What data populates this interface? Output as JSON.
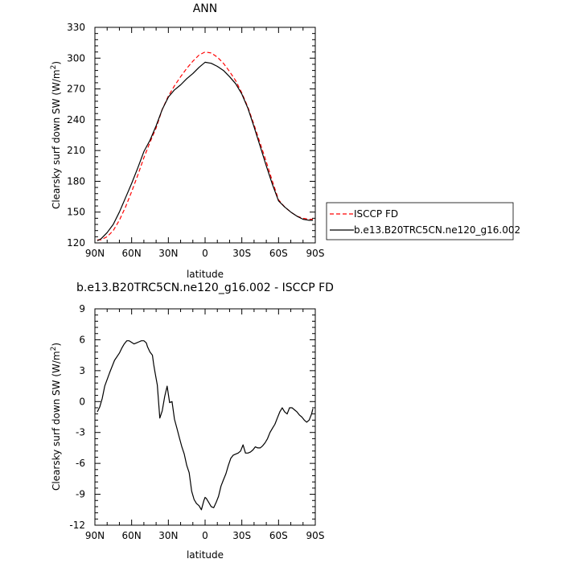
{
  "chart_data": [
    {
      "type": "line",
      "title": "ANN",
      "xlabel": "latitude",
      "ylabel_main": "Clearsky surf down SW (W/m",
      "ylabel_sup": "2",
      "ylabel_end": ")",
      "xlim": [
        -90,
        90
      ],
      "ylim": [
        120,
        330
      ],
      "xticks": [
        -90,
        -60,
        -30,
        0,
        30,
        60,
        90
      ],
      "xtick_labels": [
        "90N",
        "60N",
        "30N",
        "0",
        "30S",
        "60S",
        "90S"
      ],
      "yticks": [
        120,
        150,
        180,
        210,
        240,
        270,
        300,
        330
      ],
      "ytick_labels": [
        "120",
        "150",
        "180",
        "210",
        "240",
        "270",
        "300",
        "330"
      ],
      "legend_position": "right",
      "series": [
        {
          "name": "ISCCP FD",
          "color": "#ff0000",
          "dash": "dashed",
          "x": [
            -88,
            -85,
            -80,
            -75,
            -70,
            -65,
            -60,
            -55,
            -50,
            -45,
            -40,
            -35,
            -30,
            -25,
            -20,
            -15,
            -10,
            -5,
            0,
            5,
            10,
            15,
            20,
            25,
            30,
            35,
            40,
            45,
            50,
            55,
            60,
            65,
            70,
            75,
            80,
            85,
            88
          ],
          "y": [
            123,
            123,
            126,
            132,
            142,
            155,
            170,
            186,
            203,
            218,
            232,
            250,
            263,
            273,
            282,
            290,
            297,
            303,
            306,
            305,
            301,
            295,
            287,
            278,
            266,
            252,
            235,
            217,
            199,
            180,
            162,
            155,
            150,
            146,
            144,
            143,
            143
          ]
        },
        {
          "name": "b.e13.B20TRC5CN.ne120_g16.002",
          "color": "#000000",
          "dash": "solid",
          "x": [
            -88,
            -85,
            -80,
            -75,
            -70,
            -65,
            -60,
            -55,
            -50,
            -45,
            -40,
            -35,
            -30,
            -25,
            -20,
            -15,
            -10,
            -5,
            0,
            5,
            10,
            15,
            20,
            25,
            30,
            35,
            40,
            45,
            50,
            55,
            60,
            65,
            70,
            75,
            80,
            85,
            88
          ],
          "y": [
            122,
            124,
            130,
            138,
            150,
            164,
            178,
            193,
            209,
            220,
            234,
            250,
            262,
            269,
            274,
            280,
            285,
            291,
            296,
            295,
            292,
            288,
            282,
            275,
            265,
            251,
            233,
            214,
            195,
            177,
            161,
            155,
            150,
            146,
            143,
            142,
            142
          ]
        }
      ]
    },
    {
      "type": "line",
      "title": "b.e13.B20TRC5CN.ne120_g16.002 - ISCCP FD",
      "xlabel": "latitude",
      "ylabel_main": "Clearsky surf down SW (W/m",
      "ylabel_sup": "2",
      "ylabel_end": ")",
      "xlim": [
        -90,
        90
      ],
      "ylim": [
        -12,
        9
      ],
      "xticks": [
        -90,
        -60,
        -30,
        0,
        30,
        60,
        90
      ],
      "xtick_labels": [
        "90N",
        "60N",
        "30N",
        "0",
        "30S",
        "60S",
        "90S"
      ],
      "yticks": [
        -12,
        -9,
        -6,
        -3,
        0,
        3,
        6,
        9
      ],
      "ytick_labels": [
        "-12",
        "-9",
        "-6",
        "-3",
        "0",
        "3",
        "6",
        "9"
      ],
      "series": [
        {
          "color": "#000000",
          "dash": "solid",
          "x": [
            -88,
            -86,
            -84,
            -82,
            -78,
            -74,
            -70,
            -68,
            -66,
            -64,
            -62,
            -58,
            -56,
            -54,
            -52,
            -50,
            -48,
            -47,
            -45,
            -43,
            -42,
            -41,
            -39,
            -37,
            -35,
            -33,
            -31,
            -29,
            -27,
            -25,
            -23,
            -21,
            -19,
            -17,
            -15,
            -13,
            -11,
            -9,
            -7,
            -5,
            -3,
            -1,
            0,
            1,
            3,
            5,
            7,
            9,
            11,
            13,
            15,
            17,
            19,
            21,
            23,
            25,
            27,
            29,
            31,
            33,
            35,
            37,
            39,
            41,
            43,
            45,
            47,
            49,
            51,
            53,
            55,
            57,
            59,
            61,
            63,
            65,
            67,
            69,
            71,
            73,
            75,
            77,
            79,
            81,
            83,
            85,
            87,
            88
          ],
          "y": [
            -1.0,
            -0.5,
            0.3,
            1.5,
            2.8,
            4.0,
            4.7,
            5.2,
            5.6,
            5.9,
            5.9,
            5.6,
            5.7,
            5.8,
            5.9,
            5.9,
            5.7,
            5.3,
            4.8,
            4.5,
            3.6,
            2.9,
            1.6,
            -1.6,
            -0.9,
            0.5,
            1.5,
            -0.1,
            0.0,
            -1.7,
            -2.6,
            -3.5,
            -4.4,
            -5.1,
            -6.2,
            -6.9,
            -8.7,
            -9.5,
            -9.9,
            -10.1,
            -10.5,
            -9.6,
            -9.3,
            -9.4,
            -9.8,
            -10.2,
            -10.3,
            -9.8,
            -9.2,
            -8.2,
            -7.6,
            -7.0,
            -6.2,
            -5.5,
            -5.2,
            -5.1,
            -5.0,
            -4.8,
            -4.2,
            -5.0,
            -5.0,
            -4.9,
            -4.7,
            -4.4,
            -4.5,
            -4.5,
            -4.3,
            -4.0,
            -3.6,
            -3.0,
            -2.6,
            -2.2,
            -1.6,
            -1.0,
            -0.6,
            -1.0,
            -1.2,
            -0.6,
            -0.6,
            -0.8,
            -1.0,
            -1.3,
            -1.5,
            -1.8,
            -2.0,
            -1.8,
            -1.2,
            -0.7
          ]
        }
      ]
    }
  ]
}
